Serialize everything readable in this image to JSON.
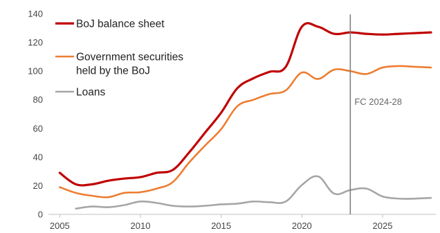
{
  "chart_data": {
    "type": "line",
    "title": "",
    "xlabel": "",
    "ylabel": "",
    "xlim": [
      2004.3,
      2028.3
    ],
    "ylim": [
      0,
      140
    ],
    "x_ticks": [
      2005,
      2010,
      2015,
      2020,
      2025
    ],
    "y_ticks": [
      0,
      20,
      40,
      60,
      80,
      100,
      120,
      140
    ],
    "grid": false,
    "legend_position": "top-left",
    "series": [
      {
        "name": "BoJ balance sheet",
        "color": "#c00000",
        "x": [
          2005,
          2006,
          2007,
          2008,
          2009,
          2010,
          2011,
          2012,
          2013,
          2014,
          2015,
          2016,
          2017,
          2018,
          2019,
          2020,
          2021,
          2022,
          2023,
          2024,
          2025,
          2026,
          2027,
          2028
        ],
        "values": [
          29,
          21,
          21,
          23.5,
          25,
          26,
          29,
          31,
          43,
          57,
          71,
          88,
          95,
          99.5,
          103,
          131,
          131,
          126,
          127,
          126,
          125.5,
          126,
          126.5,
          127
        ]
      },
      {
        "name": "Government securities held by the BoJ",
        "color": "#ed7d31",
        "x": [
          2005,
          2006,
          2007,
          2008,
          2009,
          2010,
          2011,
          2012,
          2013,
          2014,
          2015,
          2016,
          2017,
          2018,
          2019,
          2020,
          2021,
          2022,
          2023,
          2024,
          2025,
          2026,
          2027,
          2028
        ],
        "values": [
          19,
          15,
          13,
          12,
          15,
          15.5,
          18,
          22.5,
          36,
          48,
          59.5,
          75.5,
          80,
          84,
          86.5,
          99,
          94.5,
          101,
          100,
          98,
          102.5,
          103.5,
          103,
          102.5
        ]
      },
      {
        "name": "Loans",
        "color": "#a6a6a6",
        "x": [
          2006,
          2007,
          2008,
          2009,
          2010,
          2011,
          2012,
          2013,
          2014,
          2015,
          2016,
          2017,
          2018,
          2019,
          2020,
          2021,
          2022,
          2023,
          2024,
          2025,
          2026,
          2027,
          2028
        ],
        "values": [
          4,
          5.5,
          5,
          6.5,
          9,
          8,
          6,
          5.5,
          6,
          7,
          7.5,
          9,
          8.5,
          9,
          20.5,
          26.5,
          14.5,
          17,
          18,
          12.5,
          11,
          11,
          11.5
        ]
      }
    ],
    "legend": [
      {
        "lines": [
          "BoJ balance sheet"
        ]
      },
      {
        "lines": [
          "Government securities",
          "held by the BoJ"
        ]
      },
      {
        "lines": [
          "Loans"
        ]
      }
    ],
    "annotation": {
      "text": "FC 2024-28",
      "x": 2023,
      "color": "#808080"
    },
    "axis_color": "#bfbfbf"
  }
}
